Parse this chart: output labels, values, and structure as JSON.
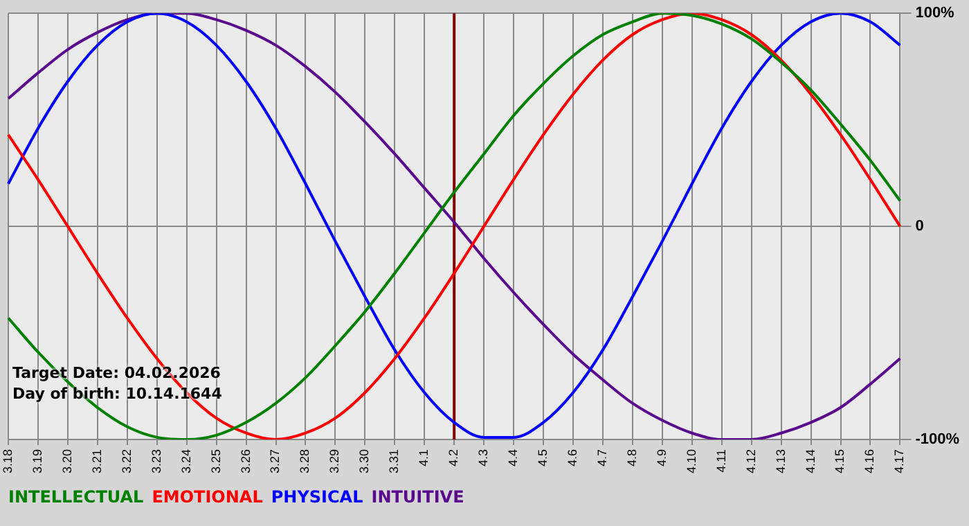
{
  "chart_data": {
    "type": "line",
    "categories": [
      "3.18",
      "3.19",
      "3.20",
      "3.21",
      "3.22",
      "3.23",
      "3.24",
      "3.25",
      "3.26",
      "3.27",
      "3.28",
      "3.29",
      "3.30",
      "3.31",
      "4.1",
      "4.2",
      "4.3",
      "4.4",
      "4.5",
      "4.6",
      "4.7",
      "4.8",
      "4.9",
      "4.10",
      "4.11",
      "4.12",
      "4.13",
      "4.14",
      "4.15",
      "4.16",
      "4.17"
    ],
    "series": [
      {
        "name": "INTELLECTUAL",
        "color": "#008000",
        "values": [
          -43,
          -59,
          -73,
          -85,
          -94,
          -99,
          -100,
          -98,
          -92,
          -83,
          -71,
          -56,
          -40,
          -22,
          -3,
          16,
          34,
          52,
          67,
          80,
          90,
          96,
          100,
          99,
          95,
          88,
          77,
          64,
          48,
          31,
          12
        ]
      },
      {
        "name": "EMOTIONAL",
        "color": "#ff0000",
        "values": [
          43,
          22,
          0,
          -22,
          -43,
          -62,
          -78,
          -90,
          -97,
          -100,
          -97,
          -90,
          -78,
          -62,
          -43,
          -22,
          0,
          22,
          43,
          62,
          78,
          90,
          97,
          100,
          97,
          90,
          78,
          62,
          43,
          22,
          0
        ]
      },
      {
        "name": "PHYSICAL",
        "color": "#0000ff",
        "values": [
          20,
          46,
          68,
          85,
          96,
          100,
          96,
          85,
          68,
          46,
          20,
          -7,
          -33,
          -58,
          -78,
          -92,
          -99,
          -99,
          -92,
          -78,
          -58,
          -33,
          -7,
          20,
          46,
          68,
          85,
          96,
          100,
          96,
          85
        ]
      },
      {
        "name": "INTUITIVE",
        "color": "#5a0a8c",
        "values": [
          60,
          72,
          83,
          91,
          97,
          100,
          100,
          97,
          92,
          85,
          75,
          63,
          49,
          34,
          18,
          2,
          -15,
          -31,
          -46,
          -60,
          -72,
          -83,
          -91,
          -97,
          -100,
          -100,
          -97,
          -92,
          -85,
          -74,
          -62
        ]
      }
    ],
    "ylim": [
      -100,
      100
    ],
    "yticks": [
      {
        "value": 100,
        "label": "100%"
      },
      0,
      {
        "value": -100,
        "label": "-100%"
      }
    ],
    "grid": true,
    "legend": "bottom",
    "marker": "none",
    "line_style": "solid",
    "ref_lines": [
      {
        "axis": "x",
        "value": "4.2",
        "color": "#800000"
      }
    ],
    "annotations": [
      "Target Date: 04.02.2026",
      "Day of birth: 10.14.1644"
    ]
  }
}
